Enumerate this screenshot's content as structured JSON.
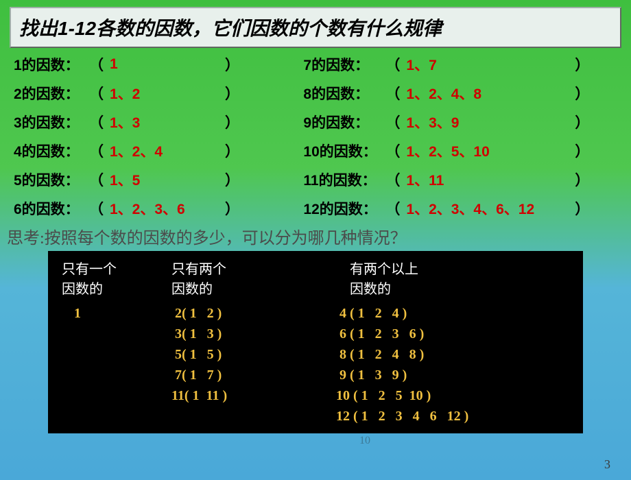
{
  "title": "找出1-12各数的因数，它们因数的个数有什么规律",
  "rows": [
    {
      "lL": "1的因数：",
      "lA": "1",
      "rL": "7的因数：",
      "rA": "1、7"
    },
    {
      "lL": "2的因数：",
      "lA": "1、2",
      "rL": "8的因数：",
      "rA": "1、2、4、8"
    },
    {
      "lL": "3的因数：",
      "lA": "1、3",
      "rL": "9的因数：",
      "rA": "1、3、9"
    },
    {
      "lL": "4的因数：",
      "lA": "1、2、4",
      "rL": "10的因数：",
      "rA": "1、2、5、10"
    },
    {
      "lL": "5的因数：",
      "lA": "1、5",
      "rL": "11的因数：",
      "rA": "1、11"
    },
    {
      "lL": "6的因数：",
      "lA": "1、2、3、6",
      "rL": "12的因数：",
      "rA": "1、2、3、4、6、12"
    }
  ],
  "think": "思考:按照每个数的因数的多少，可以分为哪几种情况？",
  "table": {
    "head": {
      "c1a": "只有一个",
      "c1b": "因数的",
      "c2a": "只有两个",
      "c2b": "因数的",
      "c3a": "有两个以上",
      "c3b": "因数的"
    },
    "col1": [
      "1"
    ],
    "col2": [
      " 2( 1   2 )",
      " 3( 1   3 )",
      " 5( 1   5 )",
      " 7( 1   7 )",
      "11( 1  11 )"
    ],
    "col3": [
      " 4 ( 1   2   4 )",
      " 6 ( 1   2   3   6 )",
      " 8 ( 1   2   4   8 )",
      " 9 ( 1   3   9 )",
      "10 ( 1   2   5  10 )",
      "12 ( 1   2   3   4   6   12 )"
    ]
  },
  "wm": "10",
  "slide": "3"
}
